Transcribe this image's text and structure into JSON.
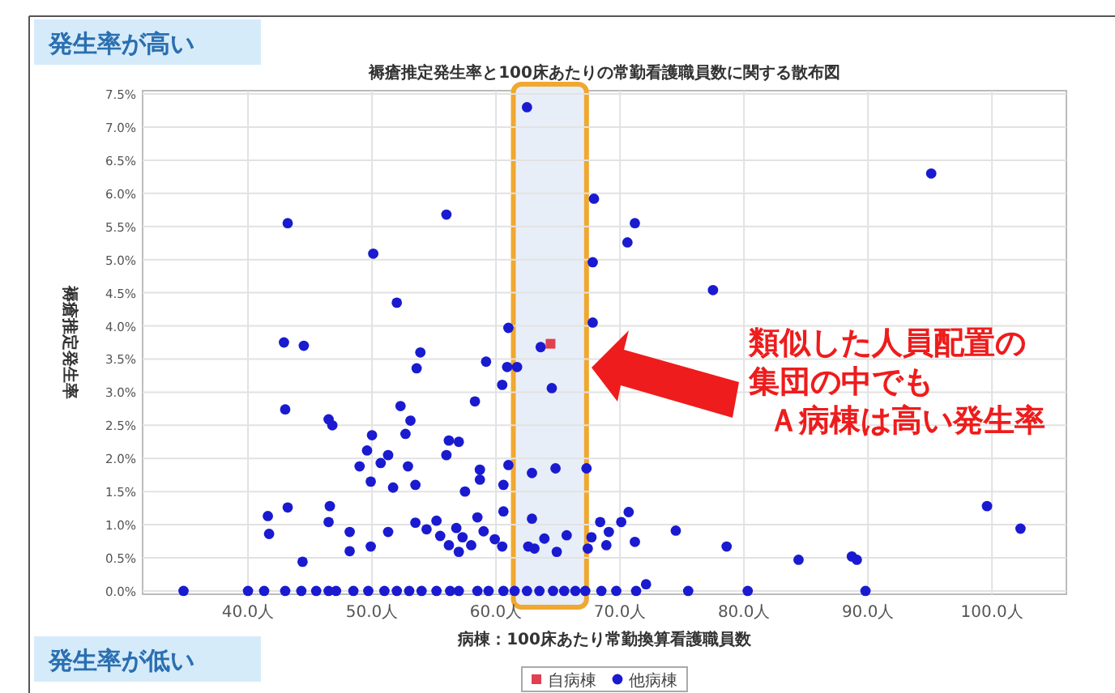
{
  "chart_data": {
    "type": "scatter",
    "title": "褥瘡推定発生率と100床あたりの常勤看護職員数に関する散布図",
    "xlabel": "病棟：100床あたり常勤換算看護職員数",
    "ylabel": "褥瘡推定発生率",
    "annotations": [
      "発生率が高い",
      "発生率が低い",
      "類似した人員配置の集団の中でも",
      "Ａ病棟は高い発生率"
    ],
    "xlim": [
      31.5,
      106
    ],
    "ylim": [
      -0.05,
      7.55
    ],
    "xticks": [
      {
        "value": 40,
        "label": "40.0人"
      },
      {
        "value": 50,
        "label": "50.0人"
      },
      {
        "value": 60,
        "label": "60.0人"
      },
      {
        "value": 70,
        "label": "70.0人"
      },
      {
        "value": 80,
        "label": "80.0人"
      },
      {
        "value": 90,
        "label": "90.0人"
      },
      {
        "value": 100,
        "label": "100.0人"
      }
    ],
    "yticks": [
      {
        "value": 0,
        "label": "0.0%"
      },
      {
        "value": 0.5,
        "label": "0.5%"
      },
      {
        "value": 1,
        "label": "1.0%"
      },
      {
        "value": 1.5,
        "label": "1.5%"
      },
      {
        "value": 2,
        "label": "2.0%"
      },
      {
        "value": 2.5,
        "label": "2.5%"
      },
      {
        "value": 3,
        "label": "3.0%"
      },
      {
        "value": 3.5,
        "label": "3.5%"
      },
      {
        "value": 4,
        "label": "4.0%"
      },
      {
        "value": 4.5,
        "label": "4.5%"
      },
      {
        "value": 5,
        "label": "5.0%"
      },
      {
        "value": 5.5,
        "label": "5.5%"
      },
      {
        "value": 6,
        "label": "6.0%"
      },
      {
        "value": 6.5,
        "label": "6.5%"
      },
      {
        "value": 7,
        "label": "7.0%"
      },
      {
        "value": 7.5,
        "label": "7.5%"
      }
    ],
    "grid": true,
    "legend": "bottom",
    "bands": [
      {
        "axis": "x",
        "from": 61.4,
        "to": 67.3,
        "color": "#e8eef8"
      }
    ],
    "series": [
      {
        "name": "自病棟",
        "color": "#e04050",
        "marker": "square",
        "x": [
          64.4
        ],
        "values": [
          3.73
        ]
      },
      {
        "name": "他病棟",
        "color": "#1a1ad0",
        "marker": "circle",
        "x": [
          62.5,
          95.1,
          43.2,
          56.0,
          50.1,
          52.0,
          67.9,
          71.2,
          70.6,
          77.5,
          67.8,
          67.8,
          42.9,
          44.5,
          61.0,
          63.6,
          64.5,
          53.9,
          53.6,
          59.2,
          61.7,
          60.9,
          60.5,
          43.0,
          58.3,
          52.3,
          53.1,
          46.5,
          46.8,
          50.0,
          49.6,
          52.7,
          56.2,
          57.0,
          56.0,
          49.0,
          51.3,
          50.7,
          52.9,
          49.9,
          51.7,
          53.5,
          58.7,
          58.7,
          61.0,
          62.9,
          64.8,
          67.3,
          60.6,
          57.5,
          60.6,
          41.6,
          41.7,
          43.2,
          46.6,
          46.5,
          44.4,
          48.2,
          48.2,
          49.9,
          51.3,
          53.5,
          54.4,
          55.5,
          56.2,
          57.0,
          58.0,
          58.5,
          59.0,
          59.9,
          60.5,
          57.3,
          55.2,
          56.8,
          62.9,
          63.1,
          63.9,
          64.9,
          65.7,
          62.6,
          68.4,
          69.1,
          70.1,
          70.7,
          67.4,
          71.2,
          68.9,
          67.7,
          74.5,
          78.6,
          84.4,
          88.7,
          89.1,
          99.6,
          102.3,
          72.1,
          34.8,
          40.0,
          41.3,
          43.0,
          44.3,
          45.5,
          46.5,
          47.1,
          48.5,
          49.7,
          51.0,
          52.0,
          53.0,
          54.0,
          55.2,
          56.3,
          57.0,
          58.5,
          59.4,
          60.6,
          61.5,
          62.5,
          63.5,
          64.6,
          65.5,
          66.4,
          67.2,
          68.5,
          69.7,
          71.3,
          75.5,
          80.3,
          89.8
        ],
        "values": [
          7.3,
          6.3,
          5.55,
          5.68,
          5.09,
          4.35,
          5.92,
          5.55,
          5.26,
          4.54,
          4.96,
          4.05,
          3.75,
          3.7,
          3.97,
          3.68,
          3.06,
          3.6,
          3.36,
          3.46,
          3.38,
          3.38,
          3.11,
          2.74,
          2.86,
          2.79,
          2.57,
          2.59,
          2.5,
          2.35,
          2.12,
          2.37,
          2.27,
          2.25,
          2.05,
          1.88,
          2.05,
          1.93,
          1.88,
          1.65,
          1.56,
          1.6,
          1.83,
          1.68,
          1.9,
          1.78,
          1.85,
          1.85,
          1.6,
          1.5,
          1.2,
          1.13,
          0.86,
          1.26,
          1.28,
          1.04,
          0.44,
          0.89,
          0.6,
          0.67,
          0.89,
          1.03,
          0.93,
          0.83,
          0.69,
          0.59,
          0.69,
          1.11,
          0.9,
          0.78,
          0.67,
          0.81,
          1.06,
          0.95,
          1.09,
          0.64,
          0.79,
          0.59,
          0.84,
          0.67,
          1.04,
          0.89,
          1.04,
          1.19,
          0.64,
          0.74,
          0.69,
          0.81,
          0.91,
          0.67,
          0.47,
          0.52,
          0.47,
          1.28,
          0.94,
          0.1,
          0,
          0,
          0,
          0,
          0,
          0,
          0,
          0,
          0,
          0,
          0,
          0,
          0,
          0,
          0,
          0,
          0,
          0,
          0,
          0,
          0,
          0,
          0,
          0,
          0,
          0,
          0,
          0,
          0,
          0,
          0,
          0,
          0
        ]
      }
    ]
  }
}
